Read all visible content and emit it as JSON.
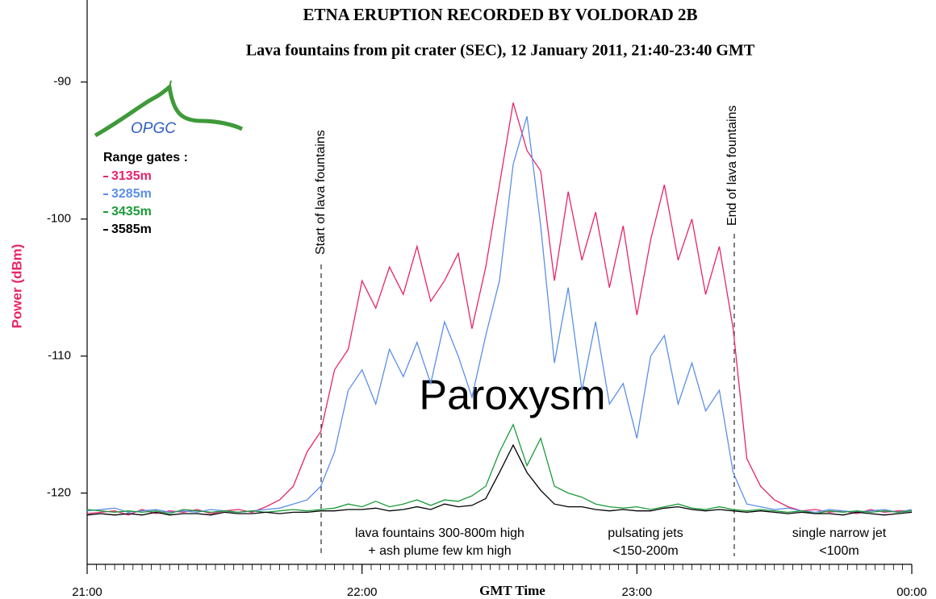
{
  "chart_data": {
    "type": "line",
    "title": "ETNA ERUPTION  RECORDED BY VOLDORAD 2B",
    "subtitle": "Lava fountains from pit crater (SEC), 12 January 2011, 21:40-23:40 GMT",
    "x_label": "GMT Time",
    "y_label": "Power (dBm)",
    "legend_title": "Range gates :",
    "logo_text": "OPGC",
    "annotations": {
      "start": "Start of lava fountains",
      "end": "End of lava fountains",
      "phase": "Paroxysm",
      "note_fountains": [
        "lava fountains 300-800m high",
        "+ ash plume few km high"
      ],
      "note_jets": [
        "pulsating jets",
        "<150-200m"
      ],
      "note_single": [
        "single narrow jet",
        "<100m"
      ]
    },
    "x": [
      "21:00",
      "21:03",
      "21:06",
      "21:09",
      "21:12",
      "21:15",
      "21:18",
      "21:21",
      "21:24",
      "21:27",
      "21:30",
      "21:33",
      "21:36",
      "21:39",
      "21:42",
      "21:45",
      "21:48",
      "21:51",
      "21:54",
      "21:57",
      "22:00",
      "22:03",
      "22:06",
      "22:09",
      "22:12",
      "22:15",
      "22:18",
      "22:21",
      "22:24",
      "22:27",
      "22:30",
      "22:33",
      "22:36",
      "22:39",
      "22:42",
      "22:45",
      "22:48",
      "22:51",
      "22:54",
      "22:57",
      "23:00",
      "23:03",
      "23:06",
      "23:09",
      "23:12",
      "23:15",
      "23:18",
      "23:21",
      "23:24",
      "23:27",
      "23:30",
      "23:33",
      "23:36",
      "23:39",
      "23:42",
      "23:45",
      "23:48",
      "23:51",
      "23:54",
      "23:57",
      "00:00"
    ],
    "series": [
      {
        "name": "3135m",
        "color": "#e8246b",
        "values": [
          -121.5,
          -121.4,
          -121.3,
          -121.6,
          -121.2,
          -121.5,
          -121.3,
          -121.4,
          -121.2,
          -121.5,
          -121.3,
          -121.2,
          -121.4,
          -121.0,
          -120.5,
          -119.5,
          -117.0,
          -115.5,
          -111.0,
          -109.5,
          -104.5,
          -106.5,
          -103.5,
          -105.5,
          -102.0,
          -106.0,
          -104.5,
          -102.5,
          -108.0,
          -103.5,
          -97.5,
          -91.5,
          -95.0,
          -96.5,
          -104.5,
          -98.0,
          -103.0,
          -99.5,
          -105.0,
          -100.5,
          -107.0,
          -101.5,
          -97.5,
          -103.0,
          -100.0,
          -105.5,
          -102.0,
          -108.0,
          -117.5,
          -119.5,
          -120.5,
          -121.0,
          -121.3,
          -121.2,
          -121.4,
          -121.3,
          -121.5,
          -121.2,
          -121.4,
          -121.3,
          -121.3
        ]
      },
      {
        "name": "3285m",
        "color": "#5b8fe8",
        "values": [
          -121.3,
          -121.2,
          -121.1,
          -121.4,
          -121.3,
          -121.2,
          -121.4,
          -121.3,
          -121.4,
          -121.2,
          -121.3,
          -121.4,
          -121.3,
          -121.2,
          -121.1,
          -120.8,
          -120.5,
          -119.5,
          -117.0,
          -112.5,
          -111.0,
          -113.5,
          -109.5,
          -111.5,
          -109.0,
          -112.0,
          -107.5,
          -110.0,
          -113.0,
          -108.5,
          -104.5,
          -96.0,
          -92.5,
          -100.5,
          -110.5,
          -105.0,
          -112.5,
          -107.5,
          -113.5,
          -112.0,
          -116.0,
          -110.0,
          -108.5,
          -113.5,
          -110.5,
          -114.0,
          -112.5,
          -118.5,
          -120.8,
          -121.0,
          -121.2,
          -121.1,
          -121.3,
          -121.4,
          -121.2,
          -121.3,
          -121.4,
          -121.3,
          -121.2,
          -121.4,
          -121.2
        ]
      },
      {
        "name": "3435m",
        "color": "#1a9a3a",
        "values": [
          -121.2,
          -121.3,
          -121.4,
          -121.3,
          -121.4,
          -121.3,
          -121.5,
          -121.2,
          -121.3,
          -121.4,
          -121.3,
          -121.4,
          -121.3,
          -121.4,
          -121.3,
          -121.2,
          -121.3,
          -121.2,
          -121.1,
          -120.8,
          -121.0,
          -120.6,
          -121.0,
          -120.8,
          -120.5,
          -120.9,
          -120.5,
          -120.6,
          -120.2,
          -119.5,
          -117.0,
          -115.0,
          -118.0,
          -116.0,
          -119.5,
          -120.0,
          -120.3,
          -120.8,
          -121.0,
          -121.1,
          -121.0,
          -121.2,
          -121.0,
          -120.8,
          -121.1,
          -121.2,
          -121.0,
          -121.2,
          -121.3,
          -121.2,
          -121.3,
          -121.4,
          -121.3,
          -121.5,
          -121.3,
          -121.4,
          -121.3,
          -121.4,
          -121.3,
          -121.4,
          -121.3
        ]
      },
      {
        "name": "3585m",
        "color": "#000000",
        "values": [
          -121.6,
          -121.5,
          -121.6,
          -121.5,
          -121.6,
          -121.4,
          -121.6,
          -121.5,
          -121.5,
          -121.6,
          -121.4,
          -121.5,
          -121.5,
          -121.4,
          -121.5,
          -121.4,
          -121.4,
          -121.3,
          -121.3,
          -121.2,
          -121.2,
          -121.1,
          -121.3,
          -121.2,
          -121.0,
          -121.2,
          -120.8,
          -121.0,
          -120.9,
          -120.4,
          -118.5,
          -116.5,
          -118.5,
          -119.8,
          -120.8,
          -121.0,
          -121.0,
          -121.2,
          -121.3,
          -121.2,
          -121.3,
          -121.3,
          -121.1,
          -121.0,
          -121.2,
          -121.3,
          -121.2,
          -121.3,
          -121.4,
          -121.3,
          -121.4,
          -121.5,
          -121.4,
          -121.5,
          -121.5,
          -121.6,
          -121.4,
          -121.5,
          -121.6,
          -121.5,
          -121.4
        ]
      }
    ],
    "xlim": [
      "21:00",
      "00:00"
    ],
    "xticks": [
      "21:00",
      "22:00",
      "23:00",
      "00:00"
    ],
    "ylim": [
      -125.2,
      -84.6
    ],
    "yticks": [
      -90,
      -100,
      -110,
      -120
    ],
    "y_label_color": "#e8246b",
    "grid": false
  }
}
